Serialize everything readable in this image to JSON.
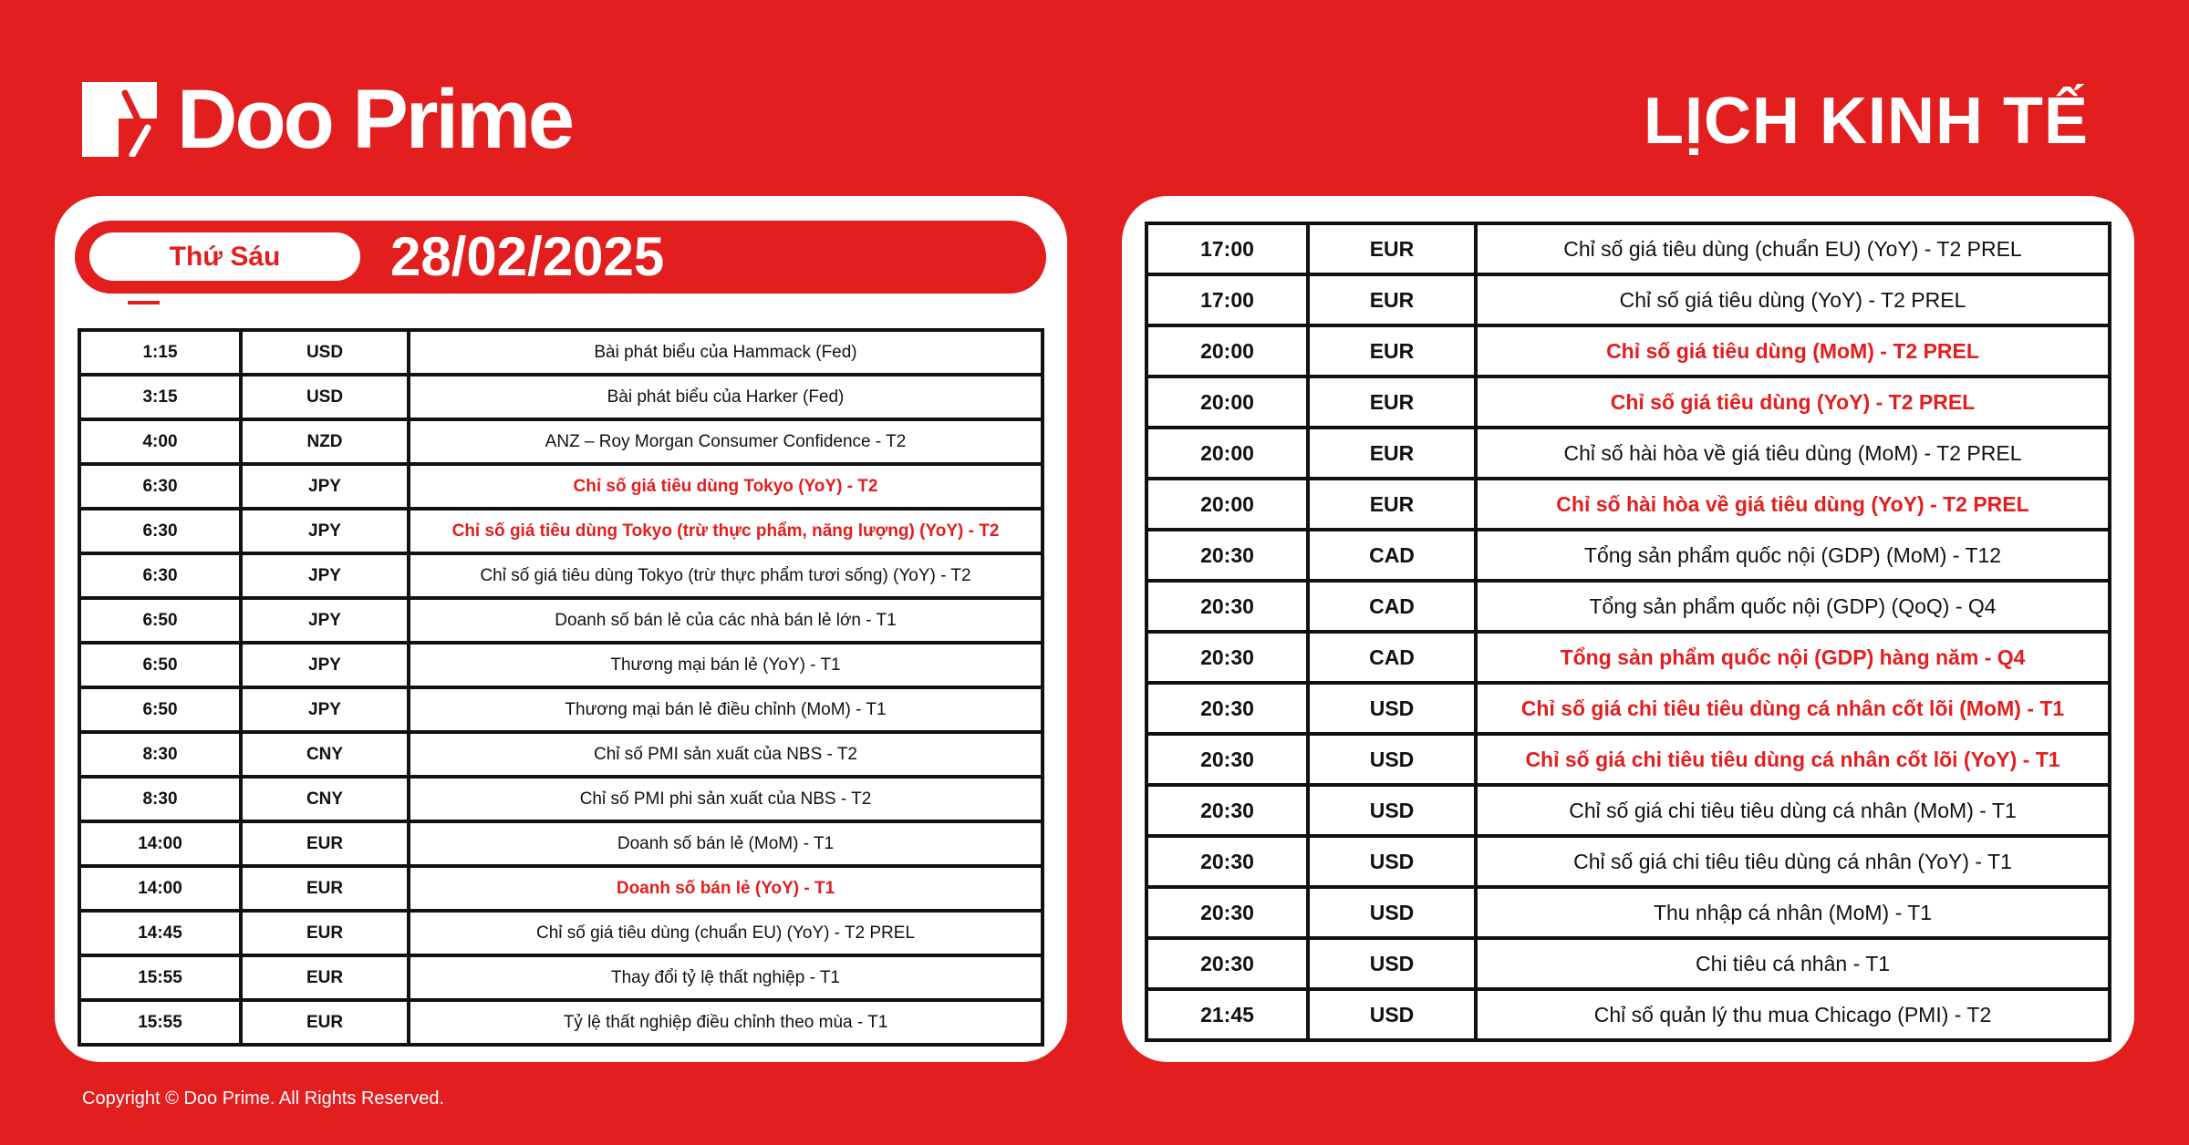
{
  "brand": {
    "name": "Doo Prime",
    "color": "#e31e1e"
  },
  "header": {
    "title": "LỊCH KINH TẾ"
  },
  "day": {
    "weekday": "Thứ Sáu",
    "date": "28/02/2025"
  },
  "left_rows": [
    {
      "time": "1:15",
      "currency": "USD",
      "event": "Bài phát biểu của Hammack (Fed)",
      "highlight": false
    },
    {
      "time": "3:15",
      "currency": "USD",
      "event": "Bài phát biểu của Harker (Fed)",
      "highlight": false
    },
    {
      "time": "4:00",
      "currency": "NZD",
      "event": "ANZ – Roy Morgan Consumer Confidence - T2",
      "highlight": false
    },
    {
      "time": "6:30",
      "currency": "JPY",
      "event": "Chỉ số giá tiêu dùng Tokyo (YoY) - T2",
      "highlight": true
    },
    {
      "time": "6:30",
      "currency": "JPY",
      "event": "Chỉ số giá tiêu dùng Tokyo (trừ thực phẩm, năng lượng) (YoY) - T2",
      "highlight": true
    },
    {
      "time": "6:30",
      "currency": "JPY",
      "event": "Chỉ số giá tiêu dùng Tokyo (trừ thực phẩm tươi sống) (YoY) - T2",
      "highlight": false
    },
    {
      "time": "6:50",
      "currency": "JPY",
      "event": "Doanh số bán lẻ của các nhà bán lẻ lớn - T1",
      "highlight": false
    },
    {
      "time": "6:50",
      "currency": "JPY",
      "event": "Thương mại bán lẻ (YoY) - T1",
      "highlight": false
    },
    {
      "time": "6:50",
      "currency": "JPY",
      "event": "Thương mại bán lẻ điều chỉnh (MoM) - T1",
      "highlight": false
    },
    {
      "time": "8:30",
      "currency": "CNY",
      "event": "Chỉ số PMI sản xuất của NBS - T2",
      "highlight": false
    },
    {
      "time": "8:30",
      "currency": "CNY",
      "event": "Chỉ số PMI phi sản xuất của NBS - T2",
      "highlight": false
    },
    {
      "time": "14:00",
      "currency": "EUR",
      "event": "Doanh số bán lẻ (MoM) - T1",
      "highlight": false
    },
    {
      "time": "14:00",
      "currency": "EUR",
      "event": "Doanh số bán lẻ (YoY) - T1",
      "highlight": true
    },
    {
      "time": "14:45",
      "currency": "EUR",
      "event": "Chỉ số giá tiêu dùng (chuẩn EU) (YoY) - T2 PREL",
      "highlight": false
    },
    {
      "time": "15:55",
      "currency": "EUR",
      "event": "Thay đổi tỷ lệ thất nghiệp - T1",
      "highlight": false
    },
    {
      "time": "15:55",
      "currency": "EUR",
      "event": "Tỷ lệ thất nghiệp điều chỉnh theo mùa - T1",
      "highlight": false
    }
  ],
  "right_rows": [
    {
      "time": "17:00",
      "currency": "EUR",
      "event": "Chỉ số giá tiêu dùng (chuẩn EU) (YoY) - T2 PREL",
      "highlight": false
    },
    {
      "time": "17:00",
      "currency": "EUR",
      "event": "Chỉ số giá tiêu dùng (YoY) - T2 PREL",
      "highlight": false
    },
    {
      "time": "20:00",
      "currency": "EUR",
      "event": "Chỉ số giá tiêu dùng (MoM) - T2 PREL",
      "highlight": true
    },
    {
      "time": "20:00",
      "currency": "EUR",
      "event": "Chỉ số giá tiêu dùng (YoY) - T2 PREL",
      "highlight": true
    },
    {
      "time": "20:00",
      "currency": "EUR",
      "event": "Chỉ số hài hòa về giá tiêu dùng (MoM) - T2 PREL",
      "highlight": false
    },
    {
      "time": "20:00",
      "currency": "EUR",
      "event": "Chỉ số hài hòa về giá tiêu dùng (YoY) - T2 PREL",
      "highlight": true
    },
    {
      "time": "20:30",
      "currency": "CAD",
      "event": "Tổng sản phẩm quốc nội (GDP) (MoM) - T12",
      "highlight": false
    },
    {
      "time": "20:30",
      "currency": "CAD",
      "event": "Tổng sản phẩm quốc nội (GDP) (QoQ) - Q4",
      "highlight": false
    },
    {
      "time": "20:30",
      "currency": "CAD",
      "event": "Tổng sản phẩm quốc nội (GDP) hàng năm - Q4",
      "highlight": true
    },
    {
      "time": "20:30",
      "currency": "USD",
      "event": "Chỉ số giá chi tiêu tiêu dùng cá nhân cốt lõi (MoM) - T1",
      "highlight": true
    },
    {
      "time": "20:30",
      "currency": "USD",
      "event": "Chỉ số giá chi tiêu tiêu dùng cá nhân cốt lõi (YoY) - T1",
      "highlight": true
    },
    {
      "time": "20:30",
      "currency": "USD",
      "event": "Chỉ số giá chi tiêu tiêu dùng cá nhân (MoM) - T1",
      "highlight": false
    },
    {
      "time": "20:30",
      "currency": "USD",
      "event": "Chỉ số giá chi tiêu tiêu dùng cá nhân (YoY) - T1",
      "highlight": false
    },
    {
      "time": "20:30",
      "currency": "USD",
      "event": "Thu nhập cá nhân (MoM) - T1",
      "highlight": false
    },
    {
      "time": "20:30",
      "currency": "USD",
      "event": "Chi tiêu cá nhân - T1",
      "highlight": false
    },
    {
      "time": "21:45",
      "currency": "USD",
      "event": "Chỉ số quản lý thu mua Chicago (PMI) - T2",
      "highlight": false
    }
  ],
  "footer": {
    "copyright": "Copyright © Doo Prime. All Rights Reserved."
  }
}
